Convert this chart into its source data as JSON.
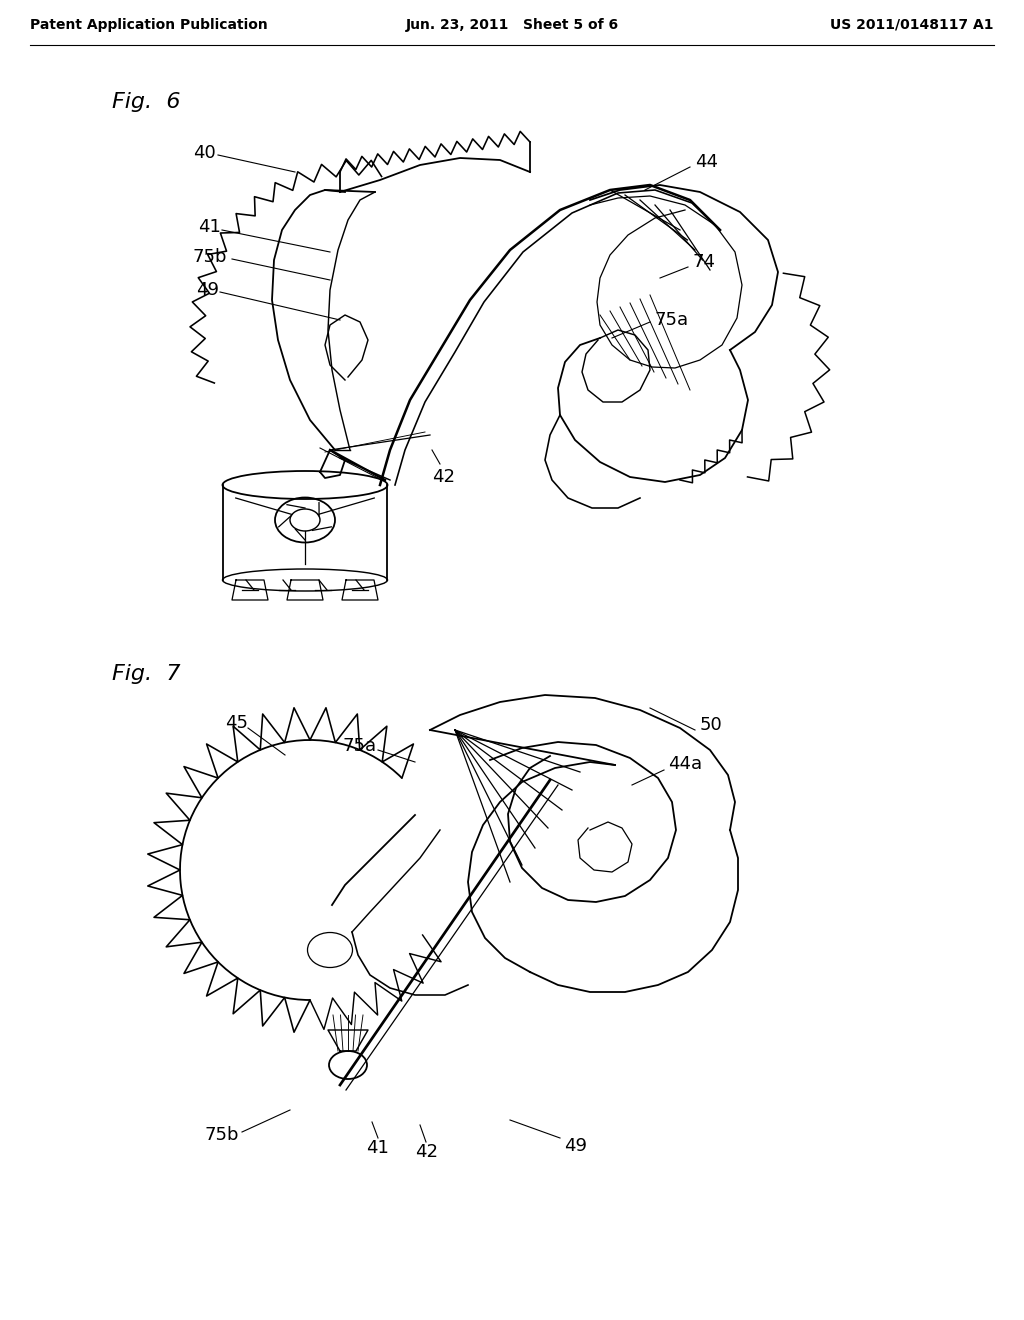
{
  "background_color": "#ffffff",
  "header_left": "Patent Application Publication",
  "header_center": "Jun. 23, 2011   Sheet 5 of 6",
  "header_right": "US 2011/0148117 A1",
  "header_fontsize": 10,
  "fig6_label": "Fig.  6",
  "fig7_label": "Fig.  7",
  "annotation_fontsize": 13,
  "line_width": 1.3
}
